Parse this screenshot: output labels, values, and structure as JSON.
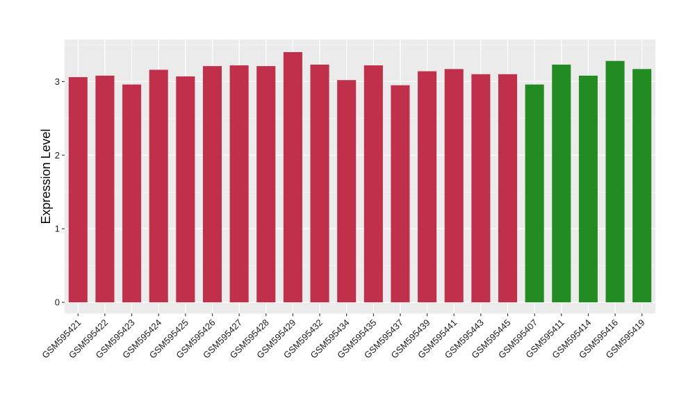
{
  "chart_data": {
    "type": "bar",
    "title": "",
    "xlabel": "",
    "ylabel": "Expression Level",
    "ylim": [
      -0.15,
      3.57
    ],
    "yticks": [
      0,
      1,
      2,
      3
    ],
    "grid": true,
    "legend": "none",
    "panel_background": "#ebebeb",
    "categories": [
      "GSM595421",
      "GSM595422",
      "GSM595423",
      "GSM595424",
      "GSM595425",
      "GSM595426",
      "GSM595427",
      "GSM595428",
      "GSM595429",
      "GSM595432",
      "GSM595434",
      "GSM595435",
      "GSM595437",
      "GSM595439",
      "GSM595441",
      "GSM595443",
      "GSM595445",
      "GSM595407",
      "GSM595411",
      "GSM595414",
      "GSM595416",
      "GSM595419"
    ],
    "values": [
      3.06,
      3.08,
      2.96,
      3.16,
      3.07,
      3.21,
      3.22,
      3.21,
      3.4,
      3.23,
      3.02,
      3.22,
      2.95,
      3.14,
      3.17,
      3.1,
      3.1,
      2.96,
      3.23,
      3.08,
      3.28,
      3.17
    ],
    "colors": [
      "#c0304a",
      "#c0304a",
      "#c0304a",
      "#c0304a",
      "#c0304a",
      "#c0304a",
      "#c0304a",
      "#c0304a",
      "#c0304a",
      "#c0304a",
      "#c0304a",
      "#c0304a",
      "#c0304a",
      "#c0304a",
      "#c0304a",
      "#c0304a",
      "#c0304a",
      "#228b22",
      "#228b22",
      "#228b22",
      "#228b22",
      "#228b22"
    ]
  }
}
